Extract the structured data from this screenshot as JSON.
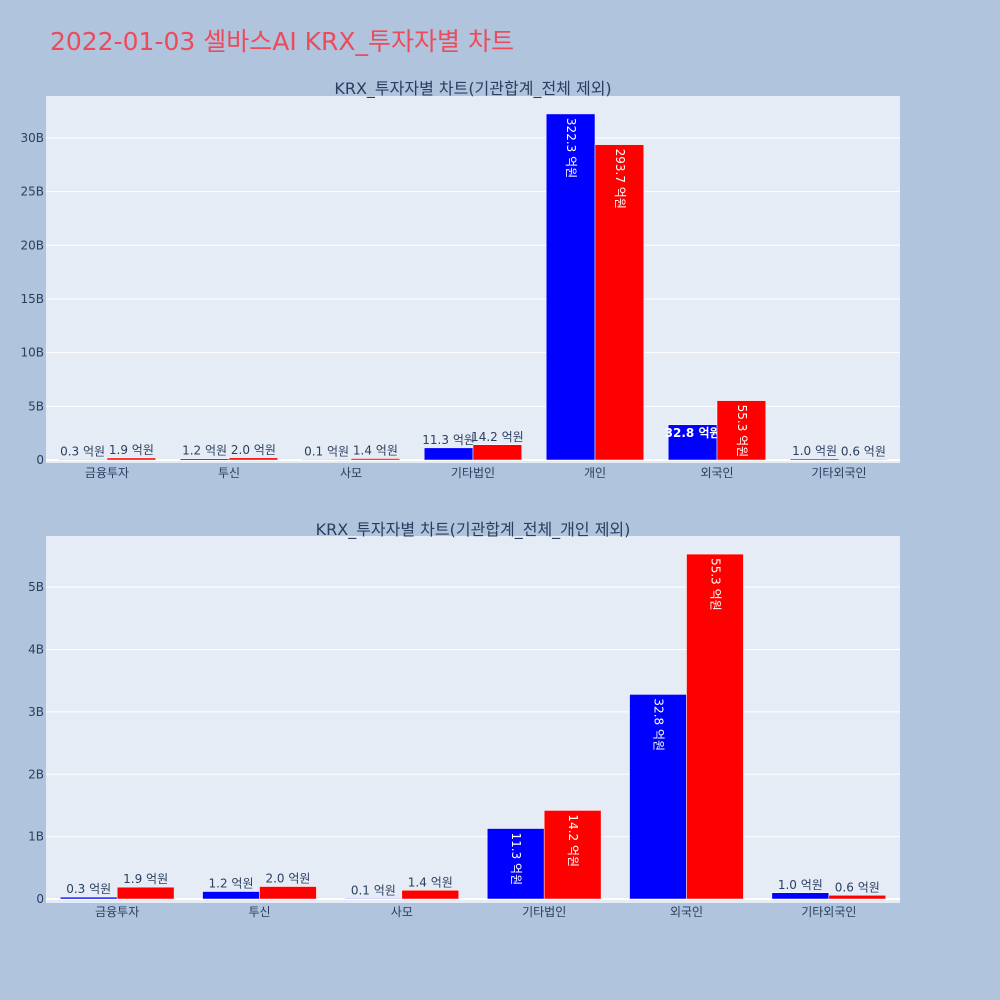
{
  "title": "2022-01-03 셀바스AI KRX_투자자별 차트",
  "colors": {
    "page_bg": "#b0c4de",
    "plot_bg": "#e5ecf6",
    "buy": "#0000ff",
    "sell": "#ff0000",
    "title": "#ee4a5a"
  },
  "chart_data": [
    {
      "type": "bar",
      "title": "KRX_투자자별 차트(기관합계_전체 제외)",
      "categories": [
        "금융투자",
        "투신",
        "사모",
        "기타법인",
        "개인",
        "외국인",
        "기타외국인"
      ],
      "series": [
        {
          "values": [
            0.03,
            0.12,
            0.01,
            1.13,
            32.23,
            3.28,
            0.1
          ],
          "labels": [
            "0.3 억원",
            "1.2 억원",
            "0.1 억원",
            "11.3 억원",
            "322.3 억원",
            "32.8 억원",
            "1.0 억원"
          ],
          "color": "#0000ff"
        },
        {
          "values": [
            0.19,
            0.2,
            0.14,
            1.42,
            29.37,
            5.53,
            0.06
          ],
          "labels": [
            "1.9 억원",
            "2.0 억원",
            "1.4 억원",
            "14.2 억원",
            "293.7 억원",
            "55.3 억원",
            "0.6 억원"
          ],
          "color": "#ff0000"
        }
      ],
      "yunit": "B",
      "yticks": [
        0,
        5,
        10,
        15,
        20,
        25,
        30
      ],
      "ytick_labels": [
        "0",
        "5B",
        "10B",
        "15B",
        "20B",
        "25B",
        "30B"
      ],
      "ylim": [
        0,
        33.9
      ]
    },
    {
      "type": "bar",
      "title": "KRX_투자자별 차트(기관합계_전체_개인 제외)",
      "categories": [
        "금융투자",
        "투신",
        "사모",
        "기타법인",
        "외국인",
        "기타외국인"
      ],
      "series": [
        {
          "values": [
            0.03,
            0.12,
            0.01,
            1.13,
            3.28,
            0.1
          ],
          "labels": [
            "0.3 억원",
            "1.2 억원",
            "0.1 억원",
            "11.3 억원",
            "32.8 억원",
            "1.0 억원"
          ],
          "color": "#0000ff"
        },
        {
          "values": [
            0.19,
            0.2,
            0.14,
            1.42,
            5.53,
            0.06
          ],
          "labels": [
            "1.9 억원",
            "2.0 억원",
            "1.4 억원",
            "14.2 억원",
            "55.3 억원",
            "0.6 억원"
          ],
          "color": "#ff0000"
        }
      ],
      "yunit": "B",
      "yticks": [
        0,
        1,
        2,
        3,
        4,
        5
      ],
      "ytick_labels": [
        "0",
        "1B",
        "2B",
        "3B",
        "4B",
        "5B"
      ],
      "ylim": [
        0,
        5.82
      ]
    }
  ]
}
